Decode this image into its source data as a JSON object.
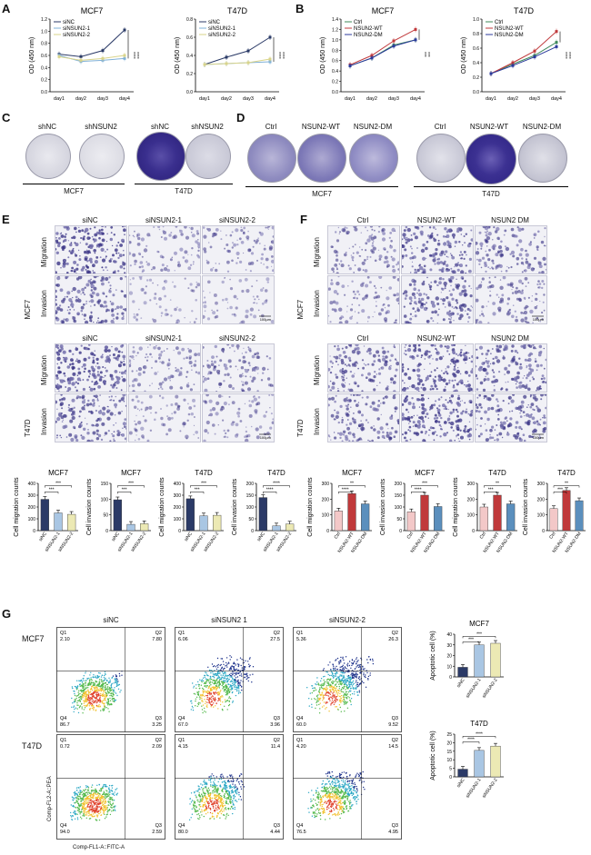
{
  "panels": {
    "A": "A",
    "B": "B",
    "C": "C",
    "D": "D",
    "E": "E",
    "F": "F",
    "G": "G"
  },
  "panelA": {
    "plots": [
      {
        "title": "MCF7",
        "ylabel": "OD (450 nm)",
        "legend": [
          "siNC",
          "siNSUN2-1",
          "siNSUN2-2"
        ],
        "sig": [
          "****",
          "****"
        ]
      },
      {
        "title": "T47D",
        "ylabel": "OD (450 nm)",
        "legend": [
          "siNC",
          "siNSUN2-1",
          "siNSUN2-2"
        ],
        "sig": [
          "****",
          "****"
        ]
      }
    ],
    "xticks": [
      "day1",
      "day2",
      "day3",
      "day4"
    ]
  },
  "panelB": {
    "plots": [
      {
        "title": "MCF7",
        "ylabel": "OD (450 nm)",
        "legend": [
          "Ctrl",
          "NSUN2-WT",
          "NSUN2-DM"
        ],
        "sig": [
          "***",
          "***"
        ]
      },
      {
        "title": "T47D",
        "ylabel": "OD (450 nm)",
        "legend": [
          "Ctrl",
          "NSUN2-WT",
          "NSUN2-DM"
        ],
        "sig": [
          "****",
          "****"
        ]
      }
    ],
    "xticks": [
      "day1",
      "day2",
      "day3",
      "day4"
    ]
  },
  "panelC": {
    "labels": [
      "shNC",
      "shNSUN2",
      "shNC",
      "shNSUN2"
    ],
    "groups": [
      "MCF7",
      "T47D"
    ]
  },
  "panelD": {
    "labels": [
      "Ctrl",
      "NSUN2-WT",
      "NSUN2-DM",
      "Ctrl",
      "NSUN2-WT",
      "NSUN2-DM"
    ],
    "groups": [
      "MCF7",
      "T47D"
    ]
  },
  "panelE": {
    "cols": [
      "siNC",
      "siNSUN2-1",
      "siNSUN2-2"
    ],
    "rows": [
      "Migration",
      "Invasion"
    ],
    "cells": [
      "MCF7",
      "T47D"
    ],
    "scale": "100μm"
  },
  "panelF": {
    "cols": [
      "Ctrl",
      "NSUN2-WT",
      "NSUN2 DM"
    ],
    "rows": [
      "Migration",
      "Invasion"
    ],
    "cells": [
      "MCF7",
      "T47D"
    ],
    "scale": "100μm"
  },
  "chart_data": [
    {
      "type": "bar",
      "title": "MCF7",
      "ylabel": "Cell migration counts",
      "categories": [
        "siNC",
        "siNSUN2-1",
        "siNSUN2-2"
      ],
      "values": [
        265,
        150,
        138
      ],
      "ylim": [
        0,
        400
      ],
      "yticks": [
        "0",
        "100",
        "200",
        "300",
        "400"
      ],
      "sig": [
        "***",
        "***"
      ],
      "colors": [
        "#2b3a67",
        "#a9c6e3",
        "#ece9b4"
      ]
    },
    {
      "type": "bar",
      "title": "MCF7",
      "ylabel": "Cell invasion counts",
      "categories": [
        "siNC",
        "siNSUN2-1",
        "siNSUN2-2"
      ],
      "values": [
        98,
        20,
        22
      ],
      "ylim": [
        0,
        150
      ],
      "yticks": [
        "0",
        "50",
        "100",
        "150"
      ],
      "sig": [
        "***",
        "***"
      ],
      "colors": [
        "#2b3a67",
        "#a9c6e3",
        "#ece9b4"
      ]
    },
    {
      "type": "bar",
      "title": "T47D",
      "ylabel": "Cell migration counts",
      "categories": [
        "siNC",
        "siNSUN2-1",
        "siNSUN2-2"
      ],
      "values": [
        270,
        125,
        130
      ],
      "ylim": [
        0,
        400
      ],
      "yticks": [
        "0",
        "100",
        "200",
        "300",
        "400"
      ],
      "sig": [
        "***",
        "***"
      ],
      "colors": [
        "#2b3a67",
        "#a9c6e3",
        "#ece9b4"
      ]
    },
    {
      "type": "bar",
      "title": "T47D",
      "ylabel": "Cell invasion counts",
      "categories": [
        "siNC",
        "siNSUN2-1",
        "siNSUN2-2"
      ],
      "values": [
        140,
        20,
        28
      ],
      "ylim": [
        0,
        200
      ],
      "yticks": [
        "0",
        "50",
        "100",
        "150",
        "200"
      ],
      "sig": [
        "****",
        "****"
      ],
      "colors": [
        "#2b3a67",
        "#a9c6e3",
        "#ece9b4"
      ]
    },
    {
      "type": "bar",
      "title": "MCF7",
      "ylabel": "Cell migration counts",
      "categories": [
        "Ctrl",
        "NSUN2-WT",
        "NSUN2-DM"
      ],
      "values": [
        125,
        235,
        170
      ],
      "ylim": [
        0,
        300
      ],
      "yticks": [
        "0",
        "100",
        "200",
        "300"
      ],
      "sig": [
        "****",
        "**"
      ],
      "colors": [
        "#f3c8c8",
        "#c0393b",
        "#5b8fbd"
      ]
    },
    {
      "type": "bar",
      "title": "MCF7",
      "ylabel": "Cell invasion counts",
      "categories": [
        "Ctrl",
        "NSUN2-WT",
        "NSUN2-DM"
      ],
      "values": [
        80,
        150,
        102
      ],
      "ylim": [
        0,
        200
      ],
      "yticks": [
        "0",
        "50",
        "100",
        "150",
        "200"
      ],
      "sig": [
        "****",
        "***"
      ],
      "colors": [
        "#f3c8c8",
        "#c0393b",
        "#5b8fbd"
      ]
    },
    {
      "type": "bar",
      "title": "T47D",
      "ylabel": "Cell migration counts",
      "categories": [
        "Ctrl",
        "NSUN2-WT",
        "NSUN2-DM"
      ],
      "values": [
        150,
        225,
        170
      ],
      "ylim": [
        0,
        300
      ],
      "yticks": [
        "0",
        "100",
        "200",
        "300"
      ],
      "sig": [
        "***",
        "**"
      ],
      "colors": [
        "#f3c8c8",
        "#c0393b",
        "#5b8fbd"
      ]
    },
    {
      "type": "bar",
      "title": "T47D",
      "ylabel": "Cell invasion counts",
      "categories": [
        "Ctrl",
        "NSUN2-WT",
        "NSUN2-DM"
      ],
      "values": [
        140,
        255,
        190
      ],
      "ylim": [
        0,
        300
      ],
      "yticks": [
        "0",
        "100",
        "200",
        "300"
      ],
      "sig": [
        "***",
        "**"
      ],
      "colors": [
        "#f3c8c8",
        "#c0393b",
        "#5b8fbd"
      ]
    },
    {
      "type": "bar",
      "title": "MCF7",
      "ylabel": "Apoptotic cell (%)",
      "categories": [
        "siNC",
        "siNSUN2-1",
        "siNSUN2-2"
      ],
      "values": [
        9,
        30,
        31.5
      ],
      "ylim": [
        0,
        40
      ],
      "yticks": [
        "0",
        "10",
        "20",
        "30",
        "40"
      ],
      "sig": [
        "***",
        "***"
      ],
      "colors": [
        "#2b3a67",
        "#a9c6e3",
        "#ece9b4"
      ]
    },
    {
      "type": "bar",
      "title": "T47D",
      "ylabel": "Apoptotic cell (%)",
      "categories": [
        "siNC",
        "siNSUN2-1",
        "siNSUN2-2"
      ],
      "values": [
        4.5,
        15.5,
        18
      ],
      "ylim": [
        0,
        25
      ],
      "yticks": [
        "0",
        "5",
        "10",
        "15",
        "20",
        "25"
      ],
      "sig": [
        "****",
        "****"
      ],
      "colors": [
        "#2b3a67",
        "#a9c6e3",
        "#ece9b4"
      ]
    }
  ],
  "panelG": {
    "cols": [
      "siNC",
      "siNSUN2 1",
      "siNSUN2-2"
    ],
    "rows": [
      "MCF7",
      "T47D"
    ],
    "xlabel": "Comp-FL1-A::FITC-A",
    "ylabel": "Comp-FL2-A::PEA",
    "quadrants": [
      [
        [
          "Q1",
          "2.10"
        ],
        [
          "Q2",
          "7.80"
        ],
        [
          "Q3",
          "3.25"
        ],
        [
          "Q4",
          "86.7"
        ]
      ],
      [
        [
          "Q1",
          "6.06"
        ],
        [
          "Q2",
          "27.5"
        ],
        [
          "Q3",
          "3.96"
        ],
        [
          "Q4",
          "67.0"
        ]
      ],
      [
        [
          "Q1",
          "5.36"
        ],
        [
          "Q2",
          "26.3"
        ],
        [
          "Q3",
          "9.52"
        ],
        [
          "Q4",
          "60.0"
        ]
      ],
      [
        [
          "Q1",
          "0.72"
        ],
        [
          "Q2",
          "2.09"
        ],
        [
          "Q3",
          "2.59"
        ],
        [
          "Q4",
          "94.0"
        ]
      ],
      [
        [
          "Q1",
          "4.15"
        ],
        [
          "Q2",
          "11.4"
        ],
        [
          "Q3",
          "4.44"
        ],
        [
          "Q4",
          "80.0"
        ]
      ],
      [
        [
          "Q1",
          "4.20"
        ],
        [
          "Q2",
          "14.5"
        ],
        [
          "Q3",
          "4.95"
        ],
        [
          "Q4",
          "76.5"
        ]
      ]
    ]
  }
}
